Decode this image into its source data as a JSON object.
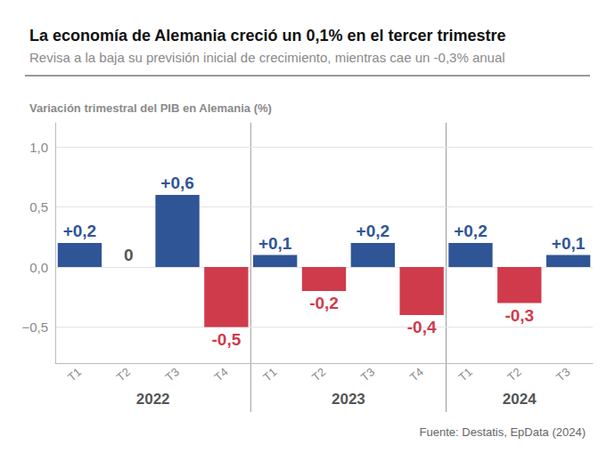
{
  "chart_data": {
    "type": "bar",
    "title": "La economía de Alemania creció un 0,1% en el tercer trimestre",
    "subtitle": "Revisa a la baja su previsión inicial de crecimiento, mientras cae un -0,3% anual",
    "y_label": "Variación trimestral del PIB en Alemania (%)",
    "source": "Fuente: Destatis, EpData (2024)",
    "categories": [
      "T1",
      "T2",
      "T3",
      "T4",
      "T1",
      "T2",
      "T3",
      "T4",
      "T1",
      "T2",
      "T3"
    ],
    "category_groups": [
      "2022",
      "2022",
      "2022",
      "2022",
      "2023",
      "2023",
      "2023",
      "2023",
      "2024",
      "2024",
      "2024"
    ],
    "values": [
      0.2,
      0,
      0.6,
      -0.5,
      0.1,
      -0.2,
      0.2,
      -0.4,
      0.2,
      -0.3,
      0.1
    ],
    "value_labels": [
      "+0,2",
      "0",
      "+0,6",
      "-0,5",
      "+0,1",
      "-0,2",
      "+0,2",
      "-0,4",
      "+0,2",
      "-0,3",
      "+0,1"
    ],
    "colors": [
      "#2f5597",
      "#555555",
      "#2f5597",
      "#cf3b4b",
      "#2f5597",
      "#cf3b4b",
      "#2f5597",
      "#cf3b4b",
      "#2f5597",
      "#cf3b4b",
      "#2f5597"
    ],
    "ylim": [
      -0.8,
      1.2
    ],
    "yticks": [
      {
        "value": -0.5,
        "label": "−0,5"
      },
      {
        "value": 0,
        "label": "0,0"
      },
      {
        "value": 0.5,
        "label": "0,5"
      },
      {
        "value": 1,
        "label": "1,0"
      }
    ],
    "grid": true,
    "data_labels": true
  }
}
